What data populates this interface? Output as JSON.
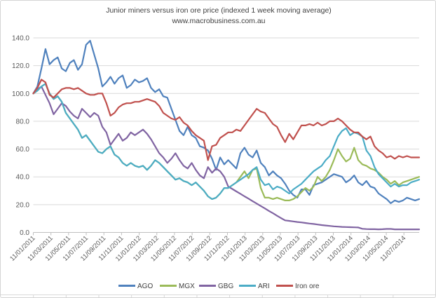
{
  "chart_data": {
    "type": "line",
    "title": "Junior miners versus iron ore price (indexed 1 week moving average)",
    "subtitle": "www.macrobusiness.com.au",
    "x_tick_labels": [
      "11/01/2011",
      "11/03/2011",
      "11/05/2011",
      "11/07/2011",
      "11/09/2011",
      "11/11/2011",
      "11/01/2012",
      "11/03/2012",
      "11/05/2012",
      "11/07/2012",
      "11/09/2012",
      "11/11/2012",
      "11/01/2013",
      "11/03/2013",
      "11/05/2013",
      "11/07/2013",
      "11/09/2013",
      "11/11/2013",
      "11/01/2014",
      "11/03/2014",
      "11/05/2014",
      "11/07/2014"
    ],
    "x_weeks_per_tick": 8.69,
    "x_start_week": 0,
    "x_step_weeks": 2,
    "x_max_weeks": 190,
    "ylim": [
      0,
      140
    ],
    "y_tick_step": 20,
    "y_tick_labels": [
      "0.0",
      "20.0",
      "40.0",
      "60.0",
      "80.0",
      "100.0",
      "120.0",
      "140.0"
    ],
    "grid": "horizontal-only",
    "legend_position": "bottom",
    "colors": {
      "grid": "#d9d9d9",
      "axis": "#bfbfbf",
      "labels": "#595959",
      "title": "#404040"
    },
    "series": [
      {
        "name": "AGO",
        "color": "#4F81BD",
        "values": [
          100,
          105,
          118,
          132,
          121,
          124,
          126,
          118,
          116,
          122,
          124,
          117,
          121,
          135,
          138,
          128,
          118,
          105,
          108,
          112,
          107,
          111,
          113,
          104,
          106,
          110,
          108,
          109,
          111,
          104,
          101,
          103,
          98,
          97,
          89,
          81,
          73,
          70,
          76,
          70,
          68,
          62,
          61,
          59,
          53,
          45,
          54,
          49,
          52,
          49,
          46,
          57,
          61,
          56,
          54,
          59,
          50,
          47,
          41,
          44,
          41,
          39,
          35,
          30,
          27,
          25,
          31,
          31,
          27,
          34,
          35,
          36,
          38,
          40,
          42,
          41,
          40,
          36,
          38,
          41,
          36,
          34,
          37,
          33,
          32,
          28,
          26,
          24,
          21,
          23,
          22,
          23,
          25,
          24,
          23,
          24
        ]
      },
      {
        "name": "MGX",
        "color": "#9BBB59",
        "values": [
          100,
          102,
          105,
          107,
          100,
          96,
          98,
          94,
          86,
          82,
          78,
          74,
          68,
          70,
          66,
          62,
          58,
          57,
          60,
          62,
          56,
          54,
          50,
          48,
          50,
          48,
          47,
          48,
          45,
          48,
          52,
          50,
          47,
          44,
          41,
          38,
          39,
          37,
          36,
          34,
          36,
          33,
          30,
          26,
          24,
          25,
          28,
          32,
          32,
          34,
          36,
          40,
          44,
          39,
          45,
          46,
          32,
          25,
          25,
          24,
          25,
          24,
          23,
          23,
          24,
          26,
          29,
          32,
          30,
          33,
          40,
          37,
          40,
          45,
          52,
          60,
          55,
          51,
          53,
          61,
          52,
          49,
          48,
          46,
          45,
          43,
          40,
          38,
          35,
          37,
          34,
          36,
          37,
          38,
          39,
          40
        ]
      },
      {
        "name": "GBG",
        "color": "#8064A2",
        "values": [
          100,
          103,
          105,
          99,
          93,
          85,
          89,
          93,
          91,
          87,
          84,
          82,
          89,
          86,
          83,
          86,
          84,
          76,
          72,
          63,
          67,
          71,
          66,
          68,
          72,
          70,
          72,
          74,
          71,
          67,
          62,
          57,
          54,
          50,
          53,
          57,
          52,
          48,
          46,
          50,
          45,
          41,
          39,
          47,
          43,
          46,
          44,
          40,
          33,
          31.3,
          29.5,
          27.8,
          26,
          24.3,
          22.5,
          20.8,
          19,
          17.3,
          15.5,
          13.8,
          12,
          10.3,
          8.7,
          8.3,
          7.9,
          7.5,
          7.2,
          6.8,
          6.4,
          6.1,
          5.7,
          5.3,
          5,
          4.7,
          4.4,
          4.2,
          4,
          3.9,
          3.8,
          3.7,
          3.6,
          2.6,
          2.4,
          2.3,
          2.3,
          2.2,
          2.3,
          2.5,
          2.5,
          2.2,
          2.2,
          2.2,
          2.2,
          2.2,
          2.2,
          2.2
        ]
      },
      {
        "name": "ARI",
        "color": "#4BACC6",
        "values": [
          100,
          102,
          105,
          107,
          100,
          96,
          98,
          94,
          86,
          82,
          78,
          74,
          68,
          70,
          66,
          62,
          58,
          57,
          60,
          62,
          56,
          54,
          50,
          48,
          50,
          48,
          47,
          48,
          45,
          48,
          52,
          50,
          47,
          44,
          41,
          38,
          39,
          37,
          36,
          34,
          36,
          33,
          30,
          26,
          24,
          25,
          28,
          32,
          32,
          34,
          36,
          38,
          40,
          42,
          45,
          47,
          38,
          34,
          35,
          31,
          33,
          32,
          30,
          28,
          31,
          33,
          35,
          38,
          41,
          44,
          46,
          48,
          52,
          55,
          62,
          69,
          73,
          75,
          70,
          72,
          71,
          69,
          59,
          55,
          47,
          42,
          39,
          36,
          33,
          35,
          33,
          34,
          34,
          36,
          37,
          38
        ]
      },
      {
        "name": "Iron ore",
        "color": "#C0504D",
        "values": [
          100,
          104,
          110,
          108,
          99,
          97,
          100,
          103,
          104,
          104,
          103,
          104,
          102,
          100,
          99,
          99,
          100,
          100,
          93,
          84,
          86,
          90,
          92,
          93,
          93,
          94,
          94,
          95,
          96,
          95,
          94,
          91,
          86,
          84,
          82,
          81,
          83,
          79,
          77,
          73,
          70,
          68,
          66,
          52,
          62,
          63,
          68,
          70,
          72,
          72,
          74,
          73,
          77,
          81,
          85,
          89,
          87,
          86,
          82,
          78,
          76,
          70,
          65,
          71,
          67,
          72,
          77,
          77,
          78,
          77,
          79,
          77,
          78,
          80,
          80,
          82,
          80,
          77,
          74,
          72,
          72,
          69,
          67,
          69,
          62,
          59,
          57,
          54,
          55,
          53,
          55,
          54,
          55,
          54,
          54,
          54
        ]
      }
    ]
  }
}
